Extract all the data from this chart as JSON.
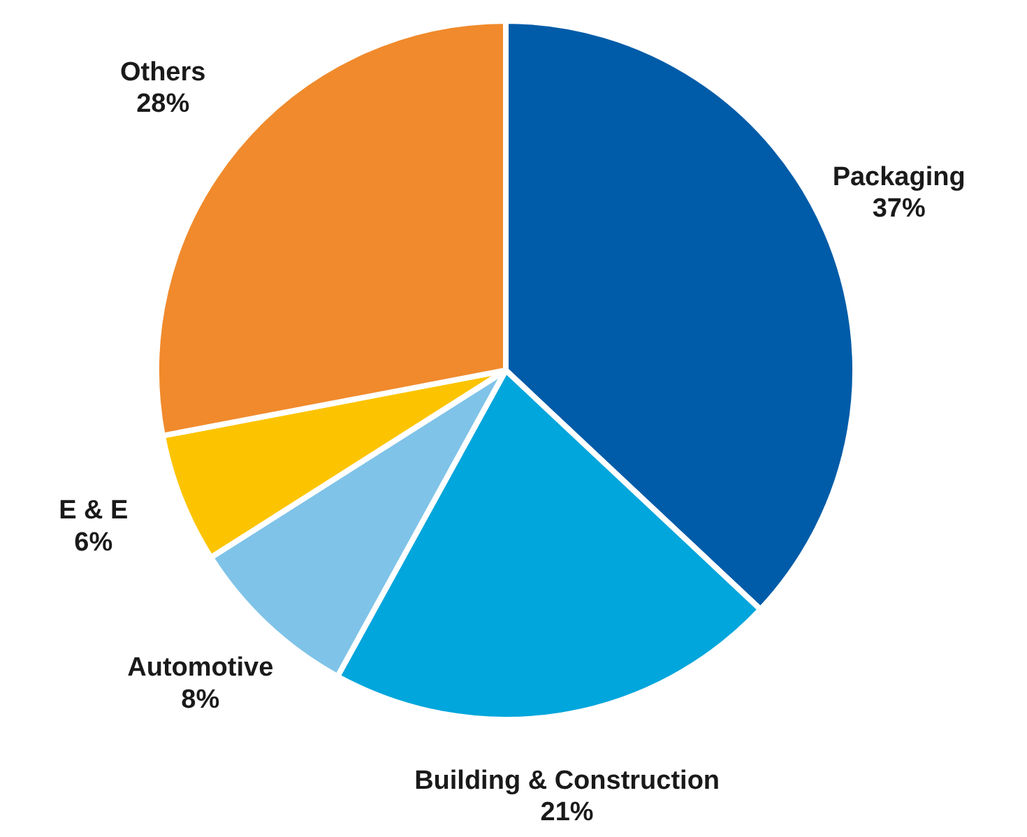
{
  "chart_data": {
    "type": "pie",
    "categories": [
      "Packaging",
      "Building & Construction",
      "Automotive",
      "E & E",
      "Others"
    ],
    "values": [
      37,
      21,
      8,
      6,
      28
    ],
    "value_labels": [
      "37%",
      "21%",
      "8%",
      "6%",
      "28%"
    ],
    "colors": [
      "#005ca8",
      "#00a6dc",
      "#7fc3e8",
      "#fcc400",
      "#f08a2c"
    ]
  }
}
